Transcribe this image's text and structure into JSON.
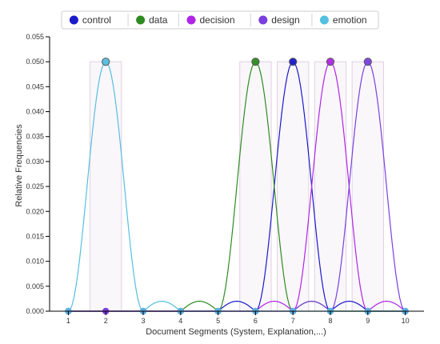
{
  "chart_data": {
    "type": "line",
    "xlabel": "Document Segments (System, Explanation,...)",
    "ylabel": "Relative Frequencies",
    "x": [
      1,
      2,
      3,
      4,
      5,
      6,
      7,
      8,
      9,
      10
    ],
    "x_ticks": [
      "1",
      "2",
      "3",
      "4",
      "5",
      "6",
      "7",
      "8",
      "9",
      "10"
    ],
    "xlim": [
      0.5,
      10.5
    ],
    "ylim": [
      0,
      0.055
    ],
    "y_ticks": [
      "0.000",
      "0.005",
      "0.010",
      "0.015",
      "0.020",
      "0.025",
      "0.030",
      "0.035",
      "0.040",
      "0.045",
      "0.050",
      "0.055"
    ],
    "legend_position": "top-center",
    "grid": false,
    "series": [
      {
        "name": "control",
        "color": "#1a1acc",
        "values": [
          0,
          0,
          0,
          0,
          0,
          0,
          0.05,
          0,
          0,
          0
        ]
      },
      {
        "name": "data",
        "color": "#2e8b22",
        "values": [
          0,
          0,
          0,
          0,
          0,
          0.05,
          0,
          0,
          0,
          0
        ]
      },
      {
        "name": "decision",
        "color": "#b026e6",
        "values": [
          0,
          0,
          0,
          0,
          0,
          0,
          0,
          0.05,
          0,
          0
        ]
      },
      {
        "name": "design",
        "color": "#7b3fe0",
        "values": [
          0,
          0,
          0,
          0,
          0,
          0,
          0,
          0,
          0.05,
          0
        ]
      },
      {
        "name": "emotion",
        "color": "#55bfe0",
        "values": [
          0,
          0.05,
          0,
          0,
          0,
          0,
          0,
          0,
          0,
          0
        ]
      }
    ]
  }
}
